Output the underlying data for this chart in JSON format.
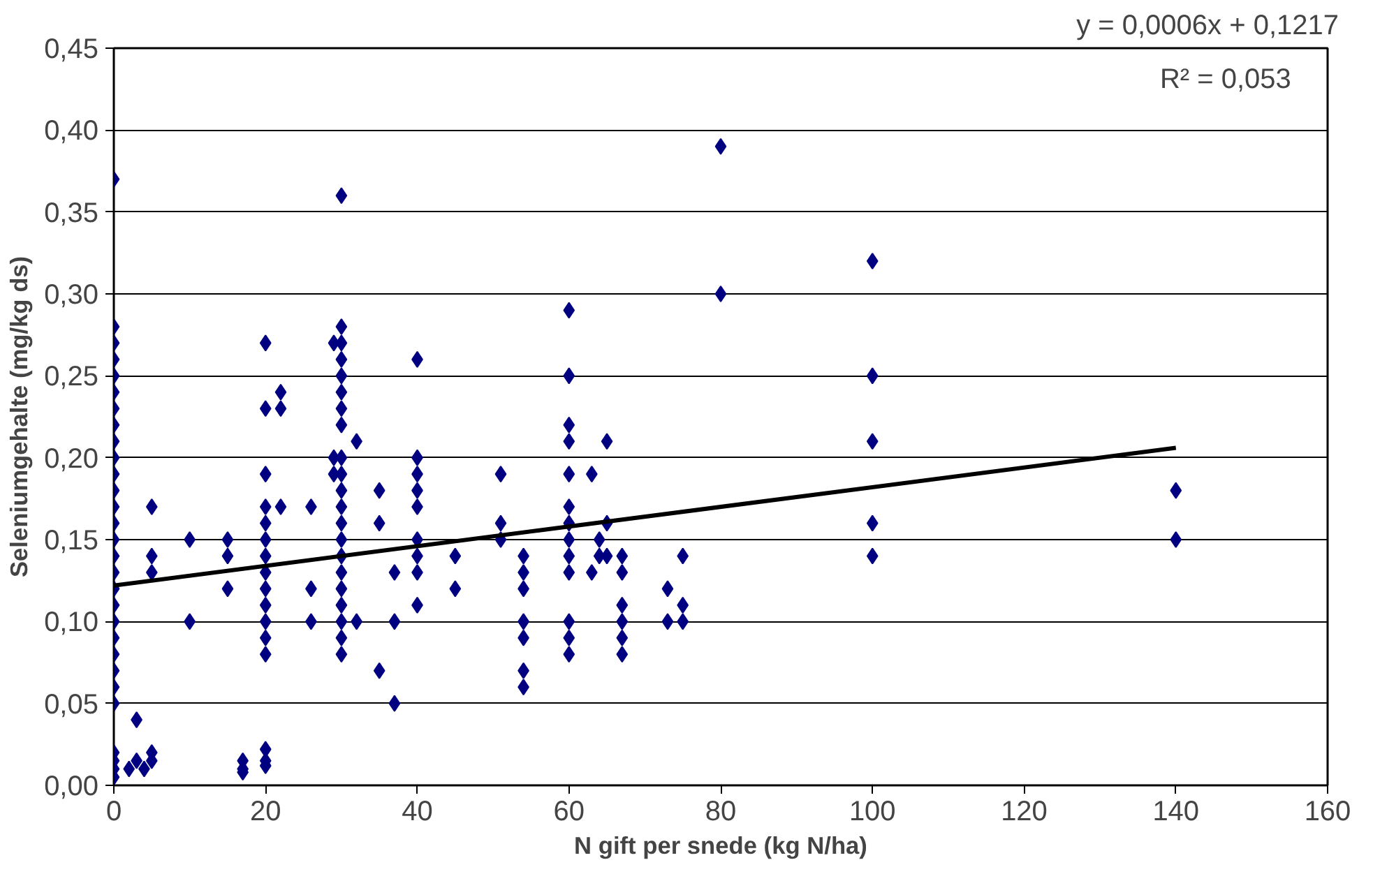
{
  "chart_data": {
    "type": "scatter",
    "xlabel": "N gift per snede (kg N/ha)",
    "ylabel": "Seleniumgehalte (mg/kg ds)",
    "annotations": [
      "y = 0,0006x + 0,1217",
      "R² = 0,053"
    ],
    "xlim": [
      0,
      160
    ],
    "xticks": [
      0,
      20,
      40,
      60,
      80,
      100,
      120,
      140,
      160
    ],
    "ylim": [
      0,
      0.45
    ],
    "yticks": [
      {
        "value": 0,
        "label": "0,00"
      },
      {
        "value": 0.05,
        "label": "0,05"
      },
      {
        "value": 0.1,
        "label": "0,10"
      },
      {
        "value": 0.15,
        "label": "0,15"
      },
      {
        "value": 0.2,
        "label": "0,20"
      },
      {
        "value": 0.25,
        "label": "0,25"
      },
      {
        "value": 0.3,
        "label": "0,30"
      },
      {
        "value": 0.35,
        "label": "0,35"
      },
      {
        "value": 0.4,
        "label": "0,40"
      },
      {
        "value": 0.45,
        "label": "0,45"
      }
    ],
    "grid": "y",
    "series": [
      {
        "color": "#000080",
        "marker": "diamond",
        "x": [
          0,
          0,
          0,
          0,
          0,
          0,
          0,
          0,
          0,
          0,
          0,
          0,
          0,
          0,
          0,
          0,
          0,
          0,
          0,
          0,
          0,
          0,
          0,
          0,
          0,
          0,
          0,
          0,
          0,
          3,
          2,
          3,
          4,
          5,
          5,
          5,
          5,
          5,
          10,
          10,
          15,
          15,
          15,
          17,
          17,
          17,
          20,
          20,
          20,
          20,
          20,
          20,
          20,
          20,
          20,
          20,
          20,
          20,
          20,
          20,
          20,
          20,
          22,
          22,
          22,
          26,
          26,
          26,
          29,
          29,
          29,
          30,
          30,
          30,
          30,
          30,
          30,
          30,
          30,
          30,
          30,
          30,
          30,
          30,
          30,
          30,
          30,
          30,
          30,
          30,
          30,
          30,
          32,
          32,
          35,
          35,
          35,
          37,
          37,
          37,
          40,
          40,
          40,
          40,
          40,
          40,
          40,
          40,
          40,
          45,
          45,
          51,
          51,
          51,
          54,
          54,
          54,
          54,
          54,
          54,
          54,
          60,
          60,
          60,
          60,
          60,
          60,
          60,
          60,
          60,
          60,
          60,
          60,
          60,
          63,
          63,
          64,
          64,
          65,
          65,
          65,
          67,
          67,
          67,
          67,
          67,
          67,
          73,
          73,
          75,
          75,
          75,
          80,
          80,
          100,
          100,
          100,
          100,
          100,
          140,
          140
        ],
        "values": [
          0.37,
          0.28,
          0.27,
          0.26,
          0.25,
          0.24,
          0.23,
          0.22,
          0.21,
          0.2,
          0.19,
          0.18,
          0.17,
          0.16,
          0.15,
          0.14,
          0.13,
          0.12,
          0.11,
          0.1,
          0.09,
          0.08,
          0.07,
          0.06,
          0.05,
          0.02,
          0.015,
          0.01,
          0.005,
          0.04,
          0.01,
          0.015,
          0.01,
          0.02,
          0.015,
          0.17,
          0.14,
          0.13,
          0.15,
          0.1,
          0.15,
          0.14,
          0.12,
          0.015,
          0.01,
          0.008,
          0.27,
          0.23,
          0.19,
          0.17,
          0.16,
          0.15,
          0.14,
          0.13,
          0.12,
          0.11,
          0.1,
          0.09,
          0.08,
          0.022,
          0.015,
          0.012,
          0.24,
          0.23,
          0.17,
          0.17,
          0.12,
          0.1,
          0.27,
          0.2,
          0.19,
          0.36,
          0.28,
          0.27,
          0.26,
          0.25,
          0.24,
          0.23,
          0.22,
          0.2,
          0.19,
          0.18,
          0.17,
          0.16,
          0.15,
          0.14,
          0.13,
          0.12,
          0.11,
          0.1,
          0.09,
          0.08,
          0.21,
          0.1,
          0.18,
          0.16,
          0.07,
          0.13,
          0.1,
          0.05,
          0.26,
          0.2,
          0.19,
          0.18,
          0.17,
          0.15,
          0.14,
          0.13,
          0.11,
          0.14,
          0.12,
          0.19,
          0.16,
          0.15,
          0.14,
          0.13,
          0.12,
          0.1,
          0.09,
          0.07,
          0.06,
          0.29,
          0.25,
          0.22,
          0.21,
          0.19,
          0.17,
          0.16,
          0.15,
          0.14,
          0.13,
          0.1,
          0.09,
          0.08,
          0.19,
          0.13,
          0.15,
          0.14,
          0.21,
          0.16,
          0.14,
          0.14,
          0.13,
          0.11,
          0.1,
          0.09,
          0.08,
          0.12,
          0.1,
          0.14,
          0.11,
          0.1,
          0.39,
          0.3,
          0.32,
          0.25,
          0.21,
          0.16,
          0.14,
          0.18,
          0.15
        ]
      },
      {
        "type": "line",
        "color": "#000000",
        "marker": "none",
        "line_style": "solid",
        "x": [
          0,
          140
        ],
        "values": [
          0.122,
          0.206
        ]
      }
    ]
  }
}
